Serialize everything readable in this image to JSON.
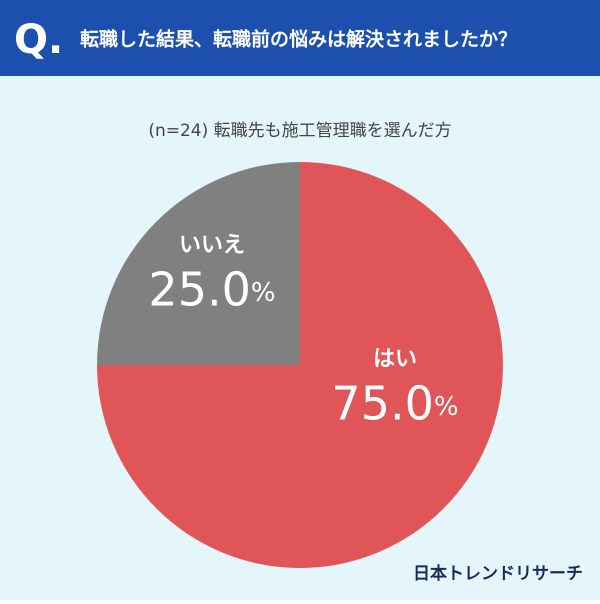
{
  "chart_data": {
    "type": "pie",
    "badge": "Q.",
    "title": "転職した結果、転職前の悩みは解決されましたか？",
    "subtitle": "(n=24) 転職先も施工管理職を選んだ方",
    "categories": [
      "はい",
      "いいえ"
    ],
    "values": [
      75,
      25
    ],
    "value_labels": [
      "75.0%",
      "25.0%"
    ],
    "colors": [
      "#e05557",
      "#808080"
    ],
    "source": "日本トレンドリサーチ"
  }
}
